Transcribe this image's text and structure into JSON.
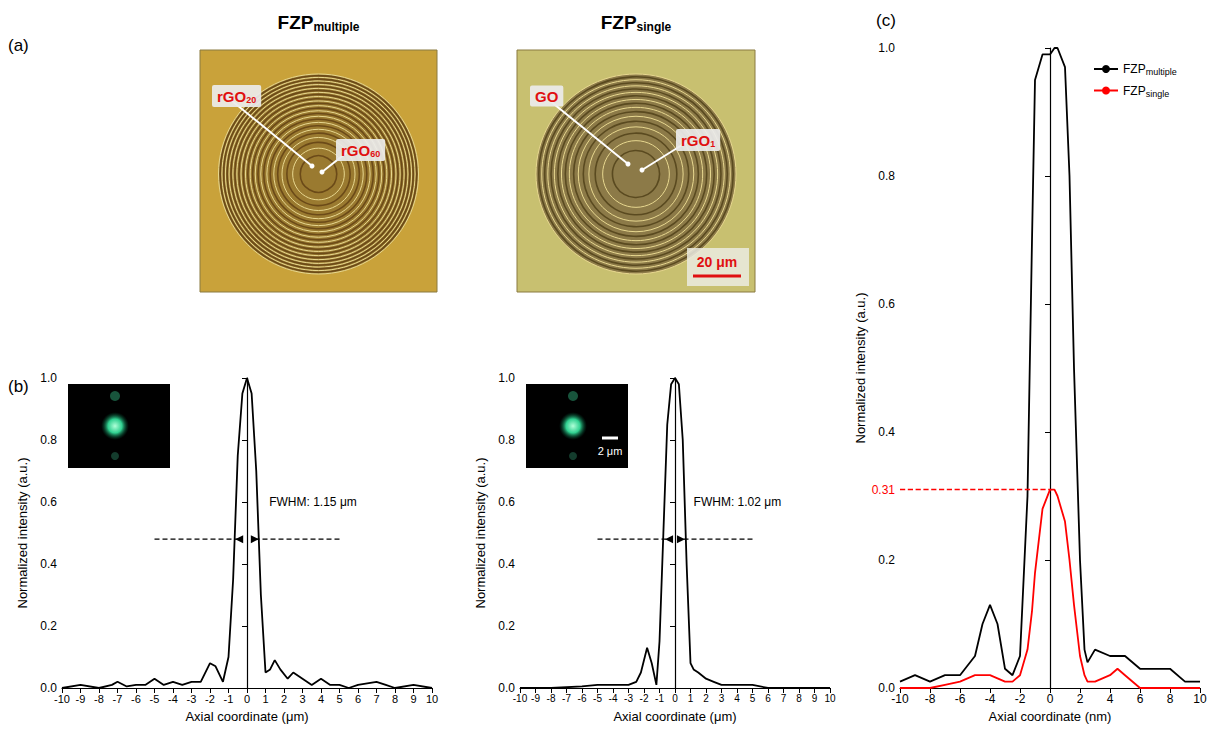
{
  "panel_labels": [
    "(a)",
    "(b)",
    "(c)"
  ],
  "images": [
    {
      "title": {
        "base": "FZP",
        "sub": "multiple"
      },
      "labels": [
        {
          "base": "rGO",
          "sub": "20"
        },
        {
          "base": "rGO",
          "sub": "60"
        }
      ]
    },
    {
      "title": {
        "base": "FZP",
        "sub": "single"
      },
      "labels": [
        {
          "base": "GO"
        },
        {
          "base": "rGO",
          "sub": "1"
        }
      ],
      "scale_bar": "20 μm"
    }
  ],
  "chart_data": [
    {
      "type": "line",
      "x_label": "Axial coordinate (μm)",
      "y_label": "Normalized intensity (a.u.)",
      "xlim": [
        -10,
        10
      ],
      "xticks": [
        -10,
        -9,
        -8,
        -7,
        -6,
        -5,
        -4,
        -3,
        -2,
        -1,
        0,
        1,
        2,
        3,
        4,
        5,
        6,
        7,
        8,
        9,
        10
      ],
      "ylim": [
        0,
        1
      ],
      "yticks": [
        {
          "value": 0,
          "label": "0.0"
        },
        0.2,
        0.4,
        0.6,
        0.8,
        {
          "value": 1,
          "label": "1.0"
        }
      ],
      "grid": false,
      "annotation": "FWHM: 1.15 μm",
      "x": [
        -10,
        -9,
        -8,
        -7.3,
        -7,
        -6.5,
        -6,
        -5.5,
        -5,
        -4.5,
        -4,
        -3.5,
        -3,
        -2.5,
        -2,
        -1.7,
        -1.3,
        -1,
        -0.75,
        -0.5,
        -0.25,
        0,
        0.25,
        0.5,
        0.75,
        1,
        1.25,
        1.5,
        1.8,
        2.2,
        2.5,
        3,
        3.5,
        4,
        4.5,
        5,
        5.5,
        6,
        7,
        7.5,
        8,
        9,
        10
      ],
      "series": [
        {
          "color": "#000000",
          "values": [
            0.0,
            0.01,
            0.0,
            0.01,
            0.02,
            0.005,
            0.01,
            0.01,
            0.03,
            0.01,
            0.02,
            0.01,
            0.02,
            0.02,
            0.08,
            0.07,
            0.02,
            0.1,
            0.35,
            0.75,
            0.95,
            1.0,
            0.95,
            0.7,
            0.3,
            0.05,
            0.06,
            0.09,
            0.06,
            0.03,
            0.05,
            0.03,
            0.01,
            0.03,
            0.01,
            0.01,
            0.0,
            0.01,
            0.02,
            0.01,
            0.0,
            0.01,
            0.0
          ]
        }
      ]
    },
    {
      "type": "line",
      "x_label": "Axial coordinate (μm)",
      "y_label": "Normalized intensity (a.u.)",
      "xlim": [
        -10,
        10
      ],
      "xticks": [
        -10,
        -9,
        -8,
        -7,
        -6,
        -5,
        -4,
        -3,
        -2,
        -1,
        0,
        1,
        2,
        3,
        4,
        5,
        6,
        7,
        8,
        9,
        10
      ],
      "ylim": [
        0,
        1
      ],
      "yticks": [
        {
          "value": 0,
          "label": "0.0"
        },
        0.2,
        0.4,
        0.6,
        0.8,
        {
          "value": 1,
          "label": "1.0"
        }
      ],
      "grid": false,
      "annotation": "FWHM: 1.02 μm",
      "inset_scale_bar": "2 μm",
      "x": [
        -10,
        -8,
        -6,
        -5,
        -4,
        -3,
        -2.5,
        -2.2,
        -1.8,
        -1.5,
        -1.2,
        -1,
        -0.75,
        -0.5,
        -0.25,
        0,
        0.25,
        0.5,
        0.75,
        1,
        1.2,
        1.5,
        2,
        2.5,
        3,
        4,
        5,
        6,
        7,
        8,
        10
      ],
      "series": [
        {
          "color": "#000000",
          "values": [
            0,
            0,
            0.005,
            0.01,
            0.01,
            0.01,
            0.02,
            0.05,
            0.13,
            0.08,
            0.01,
            0.15,
            0.5,
            0.85,
            0.98,
            1.0,
            0.98,
            0.8,
            0.4,
            0.08,
            0.06,
            0.05,
            0.03,
            0.02,
            0.01,
            0.01,
            0.01,
            0,
            0,
            0,
            0
          ]
        }
      ]
    },
    {
      "type": "line",
      "x_label": "Axial coordinate (nm)",
      "y_label": "Normalized intensity (a.u.)",
      "xlim": [
        -10,
        10
      ],
      "xticks": [
        -10,
        -8,
        -6,
        -4,
        -2,
        0,
        2,
        4,
        6,
        8,
        10
      ],
      "ylim": [
        0,
        1
      ],
      "yticks": [
        {
          "value": 0,
          "label": "0.0"
        },
        0.2,
        0.4,
        0.6,
        0.8,
        {
          "value": 1,
          "label": "1.0"
        }
      ],
      "grid": false,
      "legend": "upper right",
      "reference_line": {
        "value": 0.31,
        "color": "#ff0000",
        "line_style": "dashed"
      },
      "x": [
        -10,
        -9,
        -8,
        -7,
        -6,
        -5,
        -4.5,
        -4,
        -3.5,
        -3,
        -2.5,
        -2,
        -1.5,
        -1.2,
        -1,
        -0.5,
        0,
        0.3,
        0.5,
        1,
        1.3,
        1.6,
        2,
        2.3,
        2.5,
        3,
        4,
        4.5,
        5,
        6,
        7,
        8,
        9,
        10
      ],
      "series": [
        {
          "name": {
            "base": "FZP",
            "sub": "multiple"
          },
          "color": "#000000",
          "values": [
            0.01,
            0.02,
            0.01,
            0.02,
            0.02,
            0.05,
            0.1,
            0.13,
            0.1,
            0.03,
            0.02,
            0.05,
            0.3,
            0.7,
            0.95,
            0.99,
            0.99,
            1.0,
            1.0,
            0.97,
            0.8,
            0.5,
            0.2,
            0.06,
            0.04,
            0.06,
            0.05,
            0.05,
            0.05,
            0.03,
            0.03,
            0.03,
            0.01,
            0.01
          ]
        },
        {
          "name": {
            "base": "FZP",
            "sub": "single"
          },
          "color": "#ff0000",
          "values": [
            0,
            0,
            0,
            0.005,
            0.01,
            0.02,
            0.02,
            0.02,
            0.015,
            0.01,
            0.01,
            0.02,
            0.06,
            0.12,
            0.18,
            0.28,
            0.31,
            0.31,
            0.3,
            0.26,
            0.2,
            0.13,
            0.05,
            0.02,
            0.01,
            0.01,
            0.02,
            0.03,
            0.02,
            0.0,
            0,
            0,
            0,
            0
          ]
        }
      ]
    }
  ]
}
